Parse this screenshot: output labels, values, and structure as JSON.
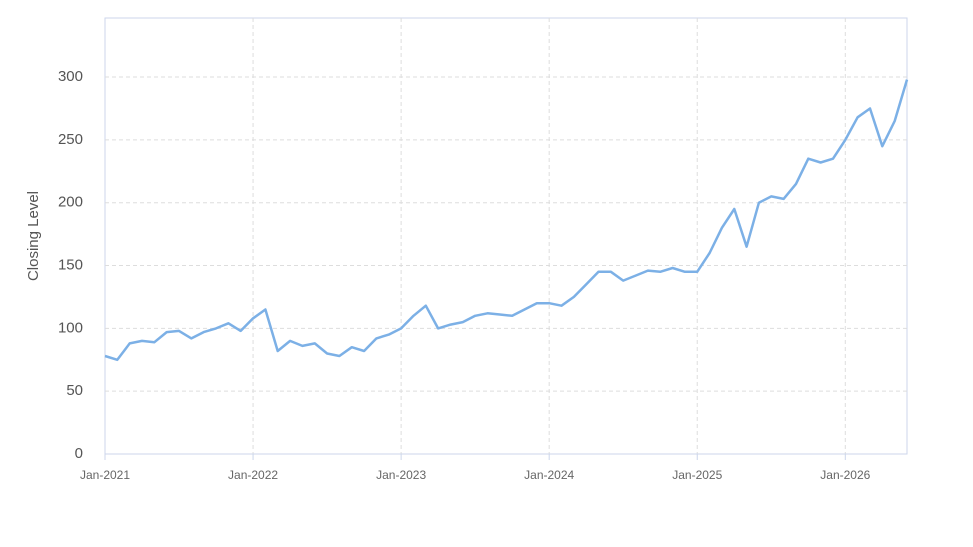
{
  "chart_data": {
    "type": "line",
    "y_label": "Closing Level",
    "x": [
      "2021-01",
      "2021-02",
      "2021-03",
      "2021-04",
      "2021-05",
      "2021-06",
      "2021-07",
      "2021-08",
      "2021-09",
      "2021-10",
      "2021-11",
      "2021-12",
      "2022-01",
      "2022-02",
      "2022-03",
      "2022-04",
      "2022-05",
      "2022-06",
      "2022-07",
      "2022-08",
      "2022-09",
      "2022-10",
      "2022-11",
      "2022-12",
      "2023-01",
      "2023-02",
      "2023-03",
      "2023-04",
      "2023-05",
      "2023-06",
      "2023-07",
      "2023-08",
      "2023-09",
      "2023-10",
      "2023-11",
      "2023-12",
      "2024-01",
      "2024-02",
      "2024-03",
      "2024-04",
      "2024-05",
      "2024-06",
      "2024-07",
      "2024-08",
      "2024-09",
      "2024-10",
      "2024-11",
      "2024-12",
      "2025-01",
      "2025-02",
      "2025-03",
      "2025-04",
      "2025-05",
      "2025-06",
      "2025-07",
      "2025-08",
      "2025-09",
      "2025-10",
      "2025-11",
      "2025-12",
      "2026-01",
      "2026-02",
      "2026-03",
      "2026-04",
      "2026-05",
      "2026-06"
    ],
    "series": [
      {
        "name": "Closing Level",
        "color": "#7cb0e6",
        "values": [
          78,
          75,
          88,
          90,
          89,
          97,
          98,
          92,
          97,
          100,
          104,
          98,
          108,
          115,
          82,
          90,
          86,
          88,
          80,
          78,
          85,
          82,
          92,
          95,
          100,
          110,
          118,
          100,
          103,
          105,
          110,
          112,
          111,
          110,
          115,
          120,
          120,
          118,
          125,
          135,
          145,
          145,
          138,
          142,
          146,
          145,
          148,
          145,
          145,
          160,
          180,
          195,
          165,
          200,
          205,
          203,
          215,
          235,
          232,
          235,
          250,
          268,
          275,
          245,
          265,
          298
        ]
      }
    ],
    "xlim": [
      "2021-01",
      "2026-06"
    ],
    "xticks": [
      {
        "value": "2021-01",
        "label": "Jan-2021"
      },
      {
        "value": "2022-01",
        "label": "Jan-2022"
      },
      {
        "value": "2023-01",
        "label": "Jan-2023"
      },
      {
        "value": "2024-01",
        "label": "Jan-2024"
      },
      {
        "value": "2025-01",
        "label": "Jan-2025"
      },
      {
        "value": "2026-01",
        "label": "Jan-2026"
      }
    ],
    "ylim": [
      0,
      347
    ],
    "yticks": [
      0,
      50,
      100,
      150,
      200,
      250,
      300
    ],
    "grid": true
  }
}
